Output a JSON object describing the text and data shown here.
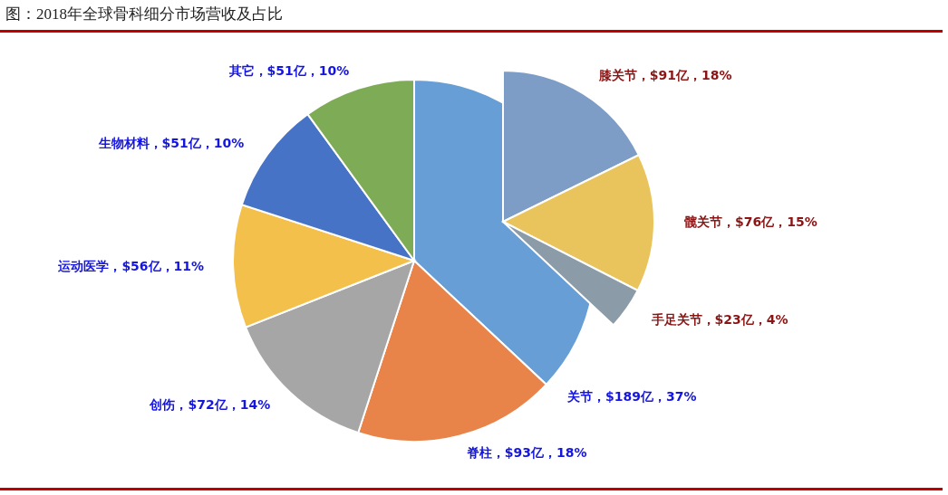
{
  "chart_data": [
    {
      "type": "pie",
      "title": "图：2018年全球骨科细分市场营收及占比",
      "categories": [
        "关节",
        "脊柱",
        "创伤",
        "运动医学",
        "生物材料",
        "其它"
      ],
      "values": [
        37,
        18,
        14,
        11,
        10,
        10
      ],
      "value_labels": [
        "$189亿，37%",
        "$93亿，18%",
        "$72亿，14%",
        "$56亿，11%",
        "$51亿，10%",
        "$51亿，10%"
      ],
      "colors": [
        "#679ed6",
        "#e8834a",
        "#a6a6a6",
        "#f4c04c",
        "#4673c5",
        "#7eab55"
      ]
    },
    {
      "type": "pie",
      "categories": [
        "膝关节",
        "髋关节",
        "手足关节"
      ],
      "values": [
        91,
        76,
        23
      ],
      "value_labels": [
        "$91亿，18%",
        "$76亿，15%",
        "$23亿，4%"
      ],
      "colors": [
        "#7d9dc6",
        "#e9c45c",
        "#8c9ba8"
      ]
    }
  ]
}
